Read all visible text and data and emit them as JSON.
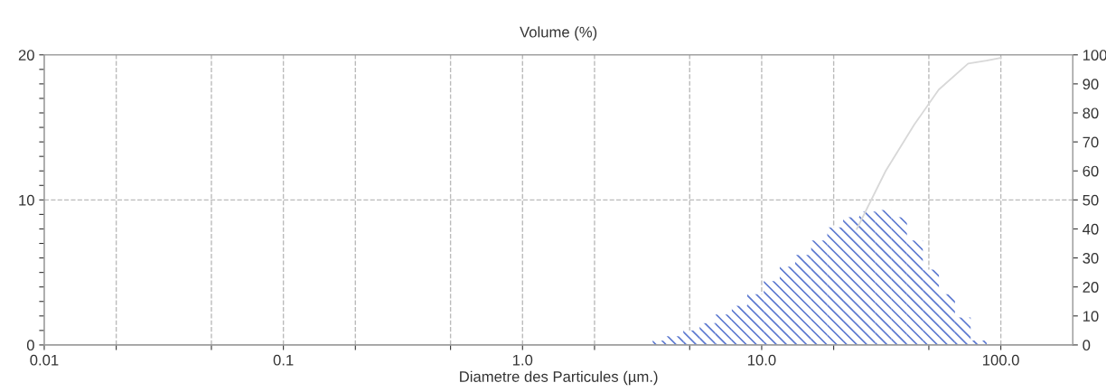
{
  "chart_data": {
    "type": "histogram",
    "title": "Volume (%)",
    "xlabel": "Diametre des Particules (µm.)",
    "log": "x",
    "grid": "dashed",
    "bins": [
      3.5,
      4.0,
      4.7,
      5.5,
      6.4,
      7.5,
      8.7,
      10.2,
      11.9,
      13.8,
      16.1,
      18.8,
      21.9,
      25.6,
      29.8,
      34.8,
      40.5,
      47.2,
      55.1,
      64.3,
      74.8,
      87.3
    ],
    "values": [
      0.3,
      0.6,
      1.0,
      1.5,
      2.1,
      2.7,
      3.5,
      4.4,
      5.4,
      6.2,
      7.2,
      8.1,
      8.8,
      9.2,
      9.3,
      8.8,
      7.2,
      5.2,
      3.5,
      1.9,
      0.3
    ],
    "color": "#5b78d0",
    "series": [
      {
        "type": "line",
        "axis": "y2",
        "color": "#d8d8d8",
        "x": [
          25,
          33,
          43.5,
          55,
          73,
          87,
          100
        ],
        "values": [
          40,
          60,
          76,
          88,
          97,
          98,
          99
        ]
      }
    ],
    "xlim": [
      0.01,
      200
    ],
    "xticks": [
      0.01,
      {
        "value": 0.02,
        "label": null
      },
      {
        "value": 0.05,
        "label": null
      },
      0.1,
      {
        "value": 0.2,
        "label": null
      },
      {
        "value": 0.5,
        "label": null
      },
      {
        "value": 1,
        "label": "1.0"
      },
      {
        "value": 2,
        "label": null
      },
      {
        "value": 5,
        "label": null
      },
      {
        "value": 10,
        "label": "10.0"
      },
      {
        "value": 20,
        "label": null
      },
      {
        "value": 50,
        "label": null
      },
      {
        "value": 100,
        "label": "100.0"
      }
    ],
    "ylim": [
      0,
      20
    ],
    "yticks": [
      0,
      {
        "value": 1,
        "label": null
      },
      {
        "value": 2,
        "label": null
      },
      {
        "value": 3,
        "label": null
      },
      {
        "value": 4,
        "label": null
      },
      {
        "value": 5,
        "label": null
      },
      {
        "value": 6,
        "label": null
      },
      {
        "value": 7,
        "label": null
      },
      {
        "value": 8,
        "label": null
      },
      {
        "value": 9,
        "label": null
      },
      10,
      {
        "value": 11,
        "label": null
      },
      {
        "value": 12,
        "label": null
      },
      {
        "value": 13,
        "label": null
      },
      {
        "value": 14,
        "label": null
      },
      {
        "value": 15,
        "label": null
      },
      {
        "value": 16,
        "label": null
      },
      {
        "value": 17,
        "label": null
      },
      {
        "value": 18,
        "label": null
      },
      {
        "value": 19,
        "label": null
      },
      20
    ],
    "y2lim": [
      0,
      100
    ],
    "y2ticks": [
      0,
      10,
      20,
      30,
      40,
      50,
      60,
      70,
      80,
      90,
      100
    ]
  }
}
